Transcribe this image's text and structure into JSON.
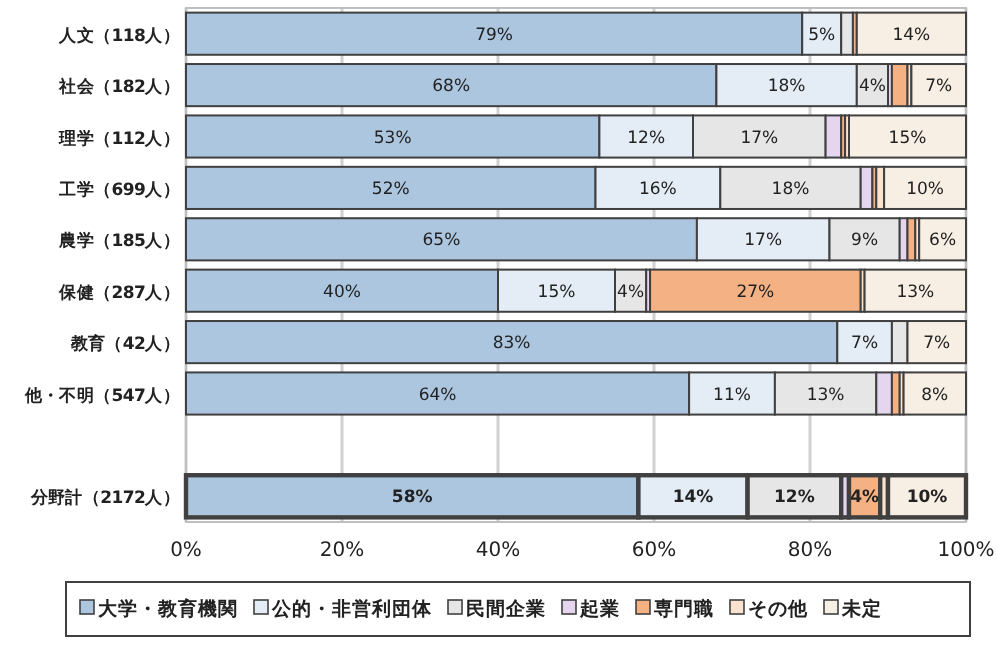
{
  "chart_data": {
    "type": "bar",
    "orientation": "horizontal",
    "stacked": true,
    "categories": [
      "人文（118人）",
      "社会（182人）",
      "理学（112人）",
      "工学（699人）",
      "農学（185人）",
      "保健（287人）",
      "教育（42人）",
      "他・不明（547人）",
      null,
      "分野計（2172人）"
    ],
    "series": [
      {
        "name": "大学・教育機関",
        "color": "#adc6df",
        "values": [
          79,
          68,
          53,
          52.5,
          65.5,
          40,
          83.5,
          64.5,
          null,
          58
        ],
        "value_labels": [
          "79%",
          "68%",
          "53%",
          "52%",
          "65%",
          "40%",
          "83%",
          "64%",
          null,
          "58%"
        ]
      },
      {
        "name": "公的・非営利団体",
        "color": "#e4ecf5",
        "values": [
          5,
          18,
          12,
          16,
          17,
          15,
          7,
          11,
          null,
          14
        ],
        "value_labels": [
          "5%",
          "18%",
          "12%",
          "16%",
          "17%",
          "15%",
          "7%",
          "11%",
          null,
          "14%"
        ]
      },
      {
        "name": "民間企業",
        "color": "#e6e6e6",
        "values": [
          1.5,
          4,
          17,
          18,
          9,
          4,
          2,
          13,
          null,
          12
        ],
        "value_labels": [
          null,
          "4%",
          "17%",
          "18%",
          "9%",
          "4%",
          null,
          "13%",
          null,
          "12%"
        ]
      },
      {
        "name": "起業",
        "color": "#e5d5ef",
        "values": [
          0,
          0.5,
          2,
          1.5,
          1,
          0.5,
          0,
          2,
          null,
          1
        ],
        "value_labels": [
          null,
          null,
          null,
          null,
          null,
          null,
          null,
          null,
          null,
          null
        ]
      },
      {
        "name": "専門職",
        "color": "#f4b183",
        "values": [
          0.5,
          2,
          0.5,
          0.5,
          1,
          27,
          0,
          1,
          null,
          4
        ],
        "value_labels": [
          null,
          null,
          null,
          null,
          null,
          "27%",
          null,
          null,
          null,
          "4%"
        ]
      },
      {
        "name": "その他",
        "color": "#fbe3d0",
        "values": [
          0,
          0.5,
          0.5,
          1,
          0.5,
          0.5,
          0,
          0.5,
          null,
          1
        ],
        "value_labels": [
          null,
          null,
          null,
          null,
          null,
          null,
          null,
          null,
          null,
          null
        ]
      },
      {
        "name": "未定",
        "color": "#f7eee4",
        "values": [
          14,
          7,
          15,
          10.5,
          6,
          13,
          7.5,
          8,
          null,
          10
        ],
        "value_labels": [
          "14%",
          "7%",
          "15%",
          "10%",
          "6%",
          "13%",
          "7%",
          "8%",
          null,
          "10%"
        ]
      }
    ],
    "xlim": [
      0,
      100
    ],
    "xticks": [
      {
        "value": 0,
        "label": "0%"
      },
      {
        "value": 20,
        "label": "20%"
      },
      {
        "value": 40,
        "label": "40%"
      },
      {
        "value": 60,
        "label": "60%"
      },
      {
        "value": 80,
        "label": "80%"
      },
      {
        "value": 100,
        "label": "100%"
      }
    ],
    "grid": "x",
    "legend": "bottom"
  }
}
